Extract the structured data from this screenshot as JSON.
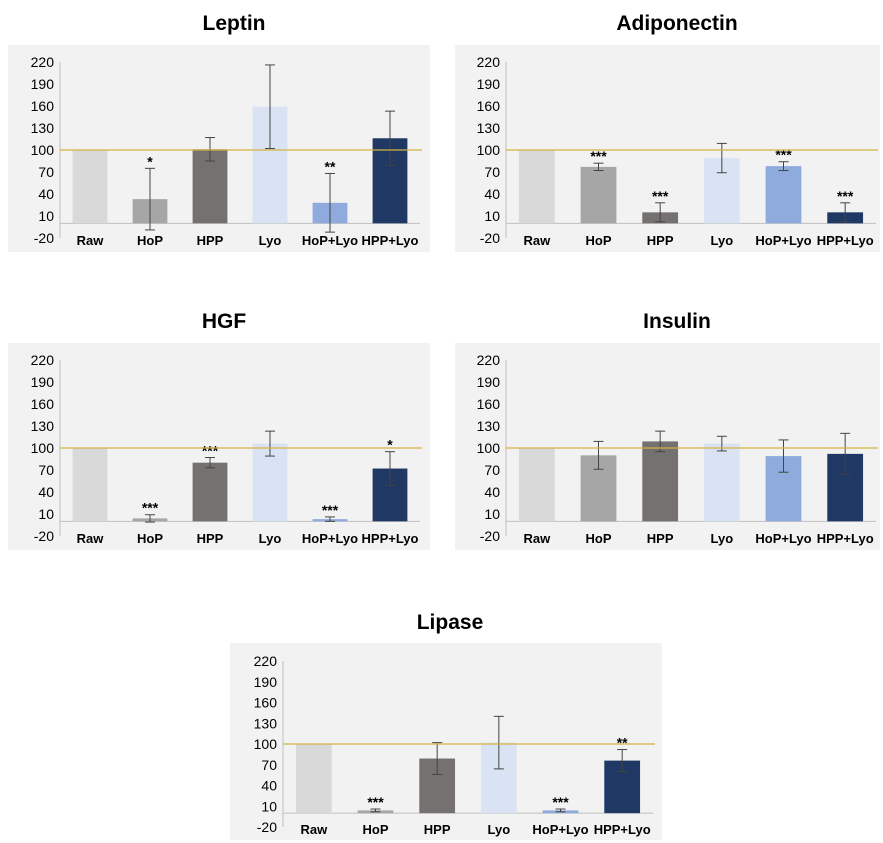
{
  "colors": {
    "Raw": "#d9d9d9",
    "HoP": "#a6a6a6",
    "HPP": "#767171",
    "Lyo": "#dae3f3",
    "HoP+Lyo": "#8faadc",
    "HPP+Lyo": "#1f3864",
    "reference_line": "#d4b340",
    "error_bar": "#444444",
    "panel_background": "#f2f2f2"
  },
  "chart_data": [
    {
      "type": "bar",
      "title": "Leptin",
      "categories": [
        "Raw",
        "HoP",
        "HPP",
        "Lyo",
        "HoP+Lyo",
        "HPP+Lyo"
      ],
      "values": [
        100,
        33,
        101,
        159,
        28,
        116
      ],
      "errors": [
        0,
        42,
        16,
        57,
        40,
        37
      ],
      "significance": [
        "",
        "*",
        "",
        "",
        "**",
        ""
      ],
      "reference_line": 100,
      "yticks": [
        220,
        190,
        160,
        130,
        100,
        70,
        40,
        10,
        -20
      ],
      "ylim": [
        -20,
        220
      ],
      "grid": false,
      "legend": "none"
    },
    {
      "type": "bar",
      "title": "Adiponectin",
      "categories": [
        "Raw",
        "HoP",
        "HPP",
        "Lyo",
        "HoP+Lyo",
        "HPP+Lyo"
      ],
      "values": [
        100,
        77,
        15,
        89,
        78,
        15
      ],
      "errors": [
        0,
        5,
        13,
        20,
        6,
        13
      ],
      "significance": [
        "",
        "***",
        "***",
        "",
        "***",
        "***"
      ],
      "reference_line": 100,
      "yticks": [
        220,
        190,
        160,
        130,
        100,
        70,
        40,
        10,
        -20
      ],
      "ylim": [
        -20,
        220
      ],
      "grid": false,
      "legend": "none"
    },
    {
      "type": "bar",
      "title": "HGF",
      "categories": [
        "Raw",
        "HoP",
        "HPP",
        "Lyo",
        "HoP+Lyo",
        "HPP+Lyo"
      ],
      "values": [
        100,
        4,
        80,
        106,
        3,
        72
      ],
      "errors": [
        0,
        5,
        7,
        17,
        3,
        23
      ],
      "significance": [
        "",
        "***",
        "***",
        "",
        "***",
        "*"
      ],
      "reference_line": 100,
      "yticks": [
        220,
        190,
        160,
        130,
        100,
        70,
        40,
        10,
        -20
      ],
      "ylim": [
        -20,
        220
      ],
      "grid": false,
      "legend": "none"
    },
    {
      "type": "bar",
      "title": "Insulin",
      "categories": [
        "Raw",
        "HoP",
        "HPP",
        "Lyo",
        "HoP+Lyo",
        "HPP+Lyo"
      ],
      "values": [
        100,
        90,
        109,
        106,
        89,
        92
      ],
      "errors": [
        0,
        19,
        14,
        10,
        22,
        28
      ],
      "significance": [
        "",
        "",
        "",
        "",
        "",
        ""
      ],
      "reference_line": 100,
      "yticks": [
        220,
        190,
        160,
        130,
        100,
        70,
        40,
        10,
        -20
      ],
      "ylim": [
        -20,
        220
      ],
      "grid": false,
      "legend": "none"
    },
    {
      "type": "bar",
      "title": "Lipase",
      "categories": [
        "Raw",
        "HoP",
        "HPP",
        "Lyo",
        "HoP+Lyo",
        "HPP+Lyo"
      ],
      "values": [
        100,
        4,
        79,
        102,
        4,
        76
      ],
      "errors": [
        0,
        2,
        23,
        38,
        2,
        16
      ],
      "significance": [
        "",
        "***",
        "",
        "",
        "***",
        "**"
      ],
      "reference_line": 100,
      "yticks": [
        220,
        190,
        160,
        130,
        100,
        70,
        40,
        10,
        -20
      ],
      "ylim": [
        -20,
        220
      ],
      "grid": false,
      "legend": "none"
    }
  ]
}
